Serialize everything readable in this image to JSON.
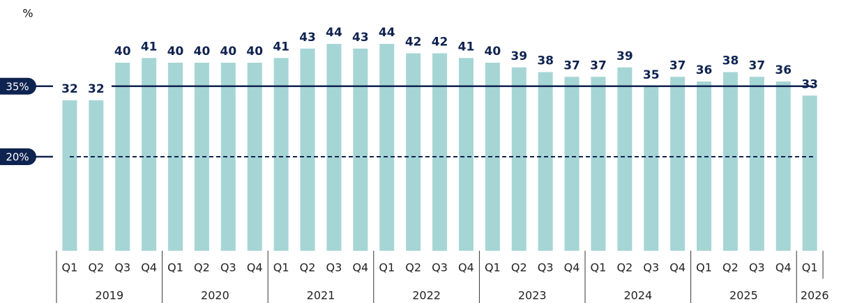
{
  "chart_data": {
    "type": "bar",
    "unit_label": "%",
    "categories": [
      "Q1",
      "Q2",
      "Q3",
      "Q4",
      "Q1",
      "Q2",
      "Q3",
      "Q4",
      "Q1",
      "Q2",
      "Q3",
      "Q4",
      "Q1",
      "Q2",
      "Q3",
      "Q4",
      "Q1",
      "Q2",
      "Q3",
      "Q4",
      "Q1",
      "Q2",
      "Q3",
      "Q4",
      "Q1",
      "Q2",
      "Q3",
      "Q4",
      "Q1"
    ],
    "groups": [
      "2019",
      "2020",
      "2021",
      "2022",
      "2023",
      "2024",
      "2025",
      "2026"
    ],
    "values": [
      32,
      32,
      40,
      41,
      40,
      40,
      40,
      40,
      41,
      43,
      44,
      43,
      44,
      42,
      42,
      41,
      40,
      39,
      38,
      37,
      37,
      39,
      35,
      37,
      36,
      38,
      37,
      36,
      33
    ],
    "color": "#a6d5d5",
    "reference_lines": [
      {
        "value": 35,
        "label": "35%",
        "style": "solid"
      },
      {
        "value": 20,
        "label": "20%",
        "style": "dashed"
      }
    ],
    "line_color": "#0f2350"
  }
}
